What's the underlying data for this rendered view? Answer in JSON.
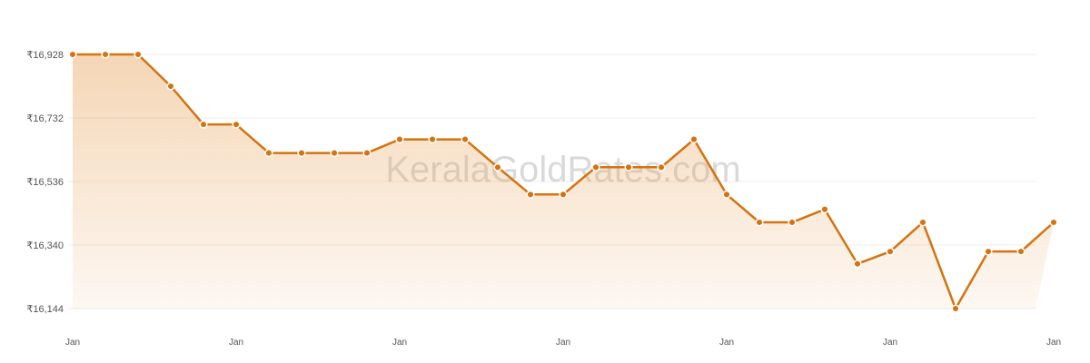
{
  "chart_data": {
    "type": "area",
    "title": "",
    "xlabel": "",
    "ylabel": "",
    "watermark": "KeralaGoldRates.com",
    "y_tick_labels": [
      "₹16,928",
      "₹16,732",
      "₹16,536",
      "₹16,340",
      "₹16,144"
    ],
    "y_ticks": [
      16928,
      16732,
      16536,
      16340,
      16144
    ],
    "x_tick_labels": [
      "Jan",
      "Jan",
      "Jan",
      "Jan",
      "Jan",
      "Jan",
      "Jan"
    ],
    "ylim": [
      16144,
      16928
    ],
    "grid": true,
    "line_color": "#d4730f",
    "fill_color": "#e8a45c",
    "series": [
      {
        "values": [
          16928,
          16928,
          16928,
          16830,
          16712,
          16712,
          16624,
          16624,
          16624,
          16624,
          16666,
          16666,
          16666,
          16580,
          16496,
          16496,
          16580,
          16580,
          16580,
          16666,
          16496,
          16410,
          16410,
          16450,
          16282,
          16320,
          16410,
          16144,
          16320,
          16320,
          16410
        ]
      }
    ]
  }
}
